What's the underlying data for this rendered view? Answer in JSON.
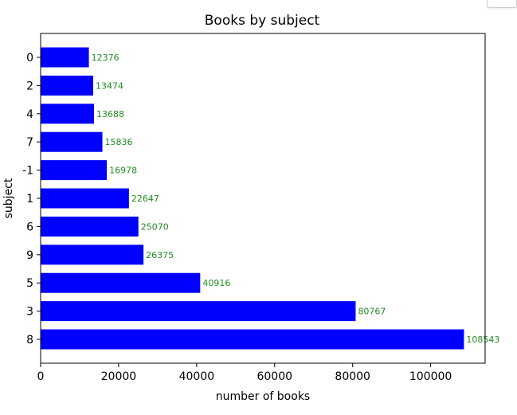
{
  "chart_data": {
    "type": "bar",
    "orientation": "horizontal",
    "title": "Books by subject",
    "xlabel": "number of books",
    "ylabel": "subject",
    "categories": [
      "0",
      "2",
      "4",
      "7",
      "-1",
      "1",
      "6",
      "9",
      "5",
      "3",
      "8"
    ],
    "values": [
      12376,
      13474,
      13688,
      15836,
      16978,
      22647,
      25070,
      26375,
      40916,
      80767,
      108543
    ],
    "data_labels": [
      "12376",
      "13474",
      "13688",
      "15836",
      "16978",
      "22647",
      "25070",
      "26375",
      "40916",
      "80767",
      "108543"
    ],
    "xlim": [
      0,
      113970
    ],
    "xticks": [
      0,
      20000,
      40000,
      60000,
      80000,
      100000
    ],
    "xtick_labels": [
      "0",
      "20000",
      "40000",
      "60000",
      "80000",
      "100000"
    ],
    "grid": false,
    "colors": {
      "bar": "#0000ff",
      "value_label": "#228b22",
      "axis": "#000000"
    }
  }
}
